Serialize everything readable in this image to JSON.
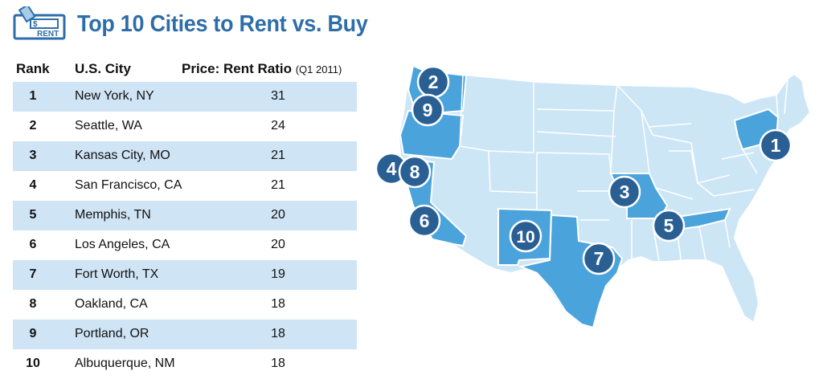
{
  "header": {
    "title": "Top 10 Cities to Rent vs. Buy",
    "logo_icon": "rent-sign-icon",
    "logo_text_top": "$",
    "logo_text_bottom": "RENT"
  },
  "chart_data": {
    "type": "table",
    "title": "Top 10 Cities to Rent vs. Buy",
    "columns": [
      "Rank",
      "U.S. City",
      "Price: Rent Ratio",
      "(Q1 2011)"
    ],
    "rows": [
      {
        "rank": "1",
        "city": "New York, NY",
        "ratio": "31",
        "state": "NY"
      },
      {
        "rank": "2",
        "city": "Seattle, WA",
        "ratio": "24",
        "state": "WA"
      },
      {
        "rank": "3",
        "city": "Kansas City, MO",
        "ratio": "21",
        "state": "MO"
      },
      {
        "rank": "4",
        "city": "San Francisco, CA",
        "ratio": "21",
        "state": "CA"
      },
      {
        "rank": "5",
        "city": "Memphis, TN",
        "ratio": "20",
        "state": "TN"
      },
      {
        "rank": "6",
        "city": "Los Angeles, CA",
        "ratio": "20",
        "state": "CA"
      },
      {
        "rank": "7",
        "city": "Fort Worth, TX",
        "ratio": "19",
        "state": "TX"
      },
      {
        "rank": "8",
        "city": "Oakland, CA",
        "ratio": "18",
        "state": "CA"
      },
      {
        "rank": "9",
        "city": "Portland, OR",
        "ratio": "18",
        "state": "OR"
      },
      {
        "rank": "10",
        "city": "Albuquerque, NM",
        "ratio": "18",
        "state": "NM"
      }
    ],
    "highlighted_states": [
      "NY",
      "WA",
      "MO",
      "CA",
      "TN",
      "TX",
      "OR",
      "NM"
    ]
  },
  "colors": {
    "title": "#2e6ea8",
    "row_shade": "#cfe4f5",
    "map_base": "#cde6f6",
    "map_highlight": "#4ba3dc",
    "map_border": "#ffffff",
    "pin_fill": "#2a5f94",
    "pin_stroke": "#ffffff"
  }
}
